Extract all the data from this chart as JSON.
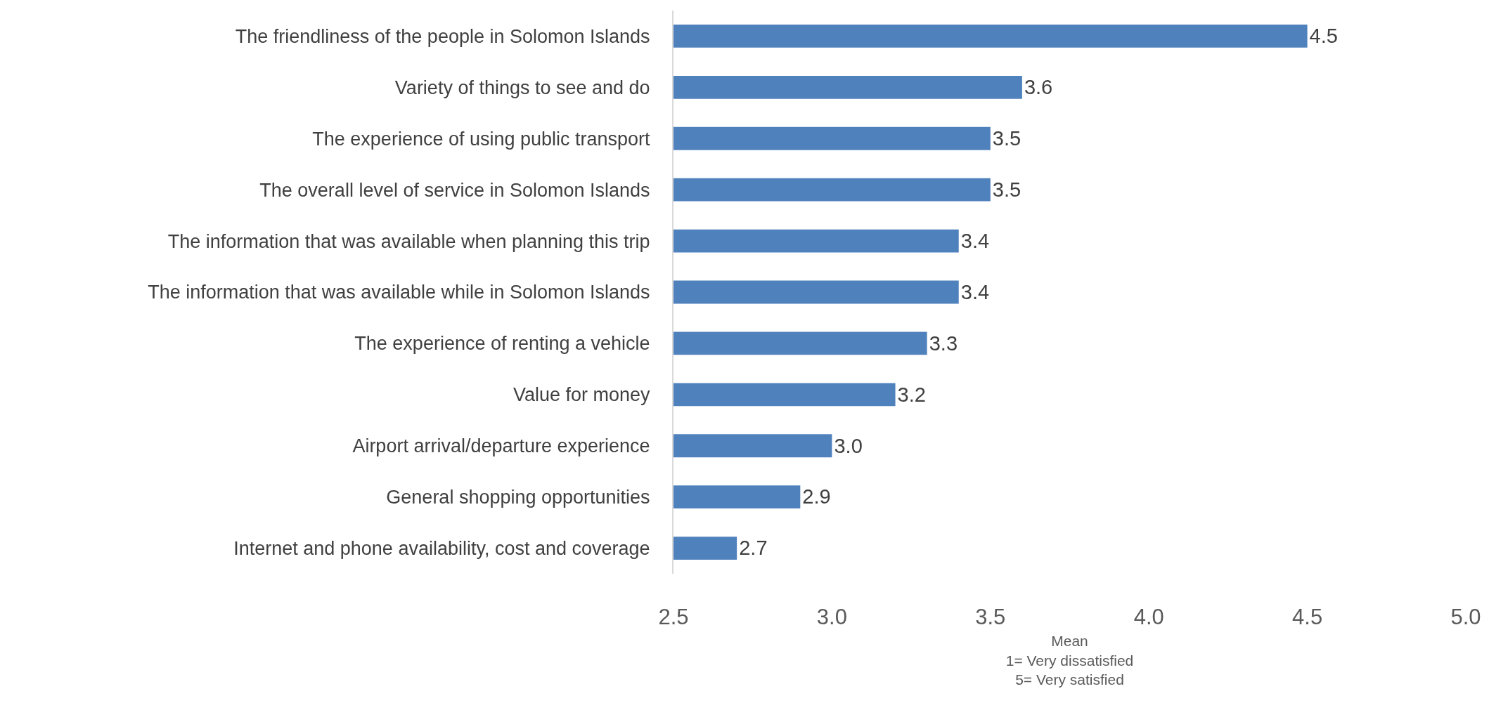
{
  "chart_data": {
    "type": "bar",
    "orientation": "horizontal",
    "categories": [
      "The friendliness of the people in Solomon Islands",
      "Variety of things to see and do",
      "The experience of using public transport",
      "The overall level of service in Solomon Islands",
      "The information that was available when planning this trip",
      "The information that was available while in Solomon Islands",
      "The experience of renting a vehicle",
      "Value for money",
      "Airport arrival/departure experience",
      "General shopping opportunities",
      "Internet and phone availability, cost and coverage"
    ],
    "values": [
      4.5,
      3.6,
      3.5,
      3.5,
      3.4,
      3.4,
      3.3,
      3.2,
      3.0,
      2.9,
      2.7
    ],
    "value_labels": [
      "4.5",
      "3.6",
      "3.5",
      "3.5",
      "3.4",
      "3.4",
      "3.3",
      "3.2",
      "3.0",
      "2.9",
      "2.7"
    ],
    "color": "#4f81bd",
    "xlabel": "Mean\n1= Very dissatisfied\n5= Very satisfied",
    "xlim": [
      2.5,
      5
    ],
    "xticks": [
      2.5,
      {
        "value": 3,
        "label": "3.0"
      },
      3.5,
      {
        "value": 4,
        "label": "4.0"
      },
      4.5,
      {
        "value": 5,
        "label": "5.0"
      }
    ],
    "grid": false
  }
}
